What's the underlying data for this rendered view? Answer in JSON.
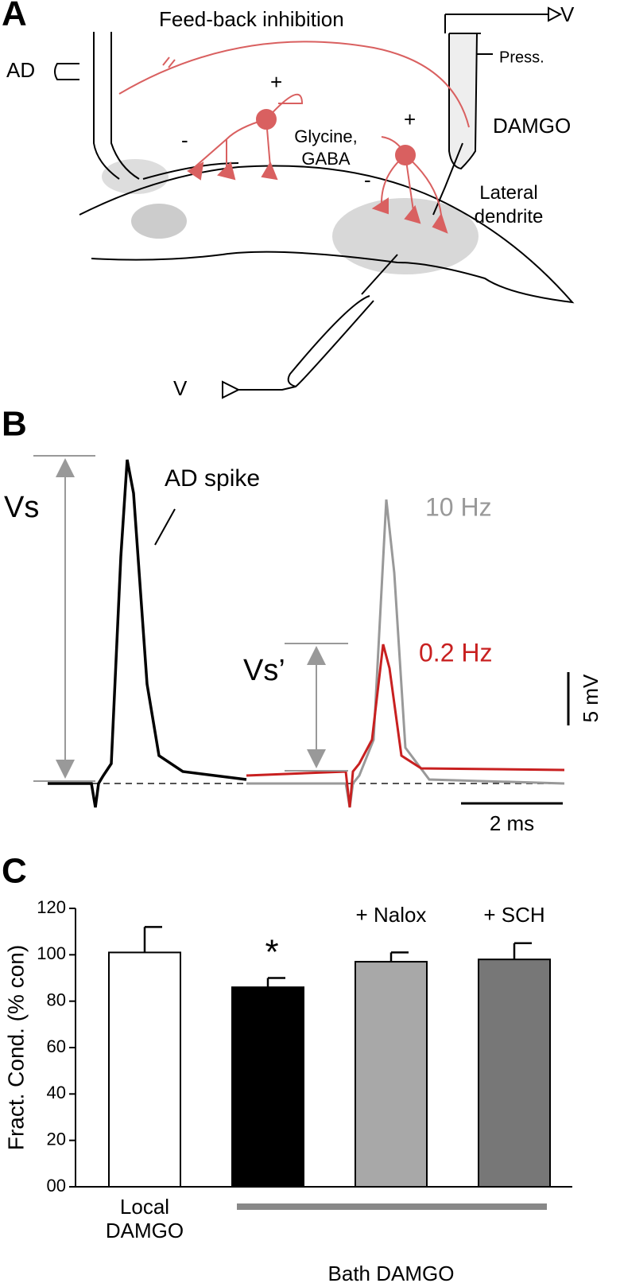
{
  "panel_a": {
    "letter": "A",
    "title": "Feed-back inhibition",
    "ad": "AD",
    "v_top": "V",
    "press": "Press.",
    "damgo": "DAMGO",
    "plus_1": "+",
    "minus_1": "-",
    "transmitters": "Glycine, GABA",
    "plus_2": "+",
    "minus_2": "-",
    "lateral": "Lateral dendrite",
    "v_bottom": "V"
  },
  "panel_b": {
    "letter": "B",
    "vs": "Vs",
    "ad_spike": "AD spike",
    "hz10": "10 Hz",
    "hz02": "0.2 Hz",
    "vs_prime": "Vs’",
    "scale_mv": "5 mV",
    "scale_ms": "2 ms"
  },
  "panel_c": {
    "letter": "C"
  },
  "chart_data": {
    "type": "bar",
    "ylabel": "Fract. Cond. (% con)",
    "categories": [
      "Local DAMGO",
      null,
      "+ Nalox",
      "+ SCH"
    ],
    "series": [
      {
        "values": [
          101,
          86,
          97,
          98
        ],
        "errors": [
          11,
          4,
          4,
          7
        ],
        "colors": [
          "#ffffff",
          "#000000",
          "#a8a8a8",
          "#777777"
        ]
      }
    ],
    "annotation": "*",
    "group_label": "Bath DAMGO",
    "ylim": [
      0,
      120
    ],
    "yticks": [
      {
        "value": 0,
        "label": "00"
      },
      20,
      40,
      60,
      80,
      100,
      120
    ]
  }
}
